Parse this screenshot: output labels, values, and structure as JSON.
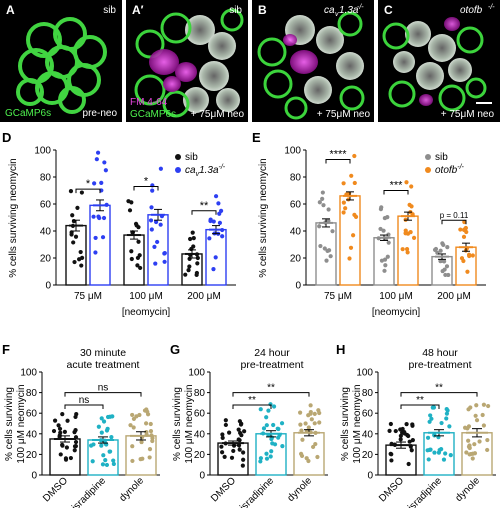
{
  "panels": {
    "A": {
      "letter": "A",
      "tag": "sib",
      "label_green": "GCaMP6s",
      "label_white": "pre-neo"
    },
    "A2": {
      "letter": "A′",
      "tag": "sib",
      "label_magenta": "FM 4-64",
      "label_green": "GCaMP6s",
      "label_white": "+ 75μM neo"
    },
    "B": {
      "letter": "B",
      "tag_main": "ca",
      "tag_sub": "v",
      "tag_rest": "1.3a",
      "tag_sup": "-/-",
      "label_white": "+ 75μM neo"
    },
    "C": {
      "letter": "C",
      "tag_main": "otofb",
      "tag_sup": "-/-",
      "label_white": "+ 75μM neo"
    }
  },
  "colors": {
    "green": "#3ed13e",
    "magenta": "#d61fd0",
    "blue": "#2d3ff2",
    "orange": "#f08a1e",
    "gray": "#8e8e8e",
    "teal": "#1fb1c4",
    "tan": "#b9a773",
    "black": "#111111"
  },
  "chart_data": [
    {
      "id": "D",
      "type": "bar",
      "letter": "D",
      "ylabel": "% cells surviving neomycin",
      "xlabel": "[neomycin]",
      "ylim": [
        0,
        100
      ],
      "yticks": [
        0,
        20,
        40,
        60,
        80,
        100
      ],
      "categories": [
        "75 μM",
        "100 μM",
        "200 μM"
      ],
      "legend": [
        {
          "name": "sib",
          "color": "#111111"
        },
        {
          "name": "ca",
          "sub": "v",
          "rest": "1.3a",
          "sup": "-/-",
          "color": "#2d3ff2"
        }
      ],
      "series": [
        {
          "name": "sib",
          "color": "#111111",
          "values": [
            44,
            37,
            23
          ],
          "errors": [
            4,
            3,
            3
          ]
        },
        {
          "name": "cav1.3a-/-",
          "color": "#2d3ff2",
          "values": [
            59,
            52,
            41
          ],
          "errors": [
            4,
            4,
            3
          ]
        }
      ],
      "significance": [
        {
          "group": 0,
          "text": "*",
          "y": 71
        },
        {
          "group": 1,
          "text": "*",
          "y": 73
        },
        {
          "group": 2,
          "text": "**",
          "y": 55
        }
      ]
    },
    {
      "id": "E",
      "type": "bar",
      "letter": "E",
      "ylabel": "% cells surviving neomycin",
      "xlabel": "[neomycin]",
      "ylim": [
        0,
        100
      ],
      "yticks": [
        0,
        20,
        40,
        60,
        80,
        100
      ],
      "categories": [
        "75 μM",
        "100 μM",
        "200 μM"
      ],
      "legend": [
        {
          "name": "sib",
          "color": "#8e8e8e"
        },
        {
          "name": "otofb",
          "sup": "-/-",
          "color": "#f08a1e"
        }
      ],
      "series": [
        {
          "name": "sib",
          "color": "#8e8e8e",
          "values": [
            46,
            35,
            21
          ],
          "errors": [
            3,
            2,
            2
          ]
        },
        {
          "name": "otofb-/-",
          "color": "#f08a1e",
          "values": [
            66,
            51,
            28
          ],
          "errors": [
            3,
            3,
            3
          ]
        }
      ],
      "significance": [
        {
          "group": 0,
          "text": "****",
          "y": 93
        },
        {
          "group": 1,
          "text": "***",
          "y": 70
        },
        {
          "group": 2,
          "text": "p = 0.11",
          "y": 48
        }
      ]
    },
    {
      "id": "F",
      "type": "bar",
      "letter": "F",
      "title": [
        "30 minute",
        "acute treatment"
      ],
      "ylabel": [
        "% cells surviving",
        "100 μM neomycin"
      ],
      "ylim": [
        0,
        100
      ],
      "yticks": [
        0,
        20,
        40,
        60,
        80,
        100
      ],
      "categories": [
        "DMSO",
        "isradipine",
        "dynole"
      ],
      "colors": [
        "#111111",
        "#1fb1c4",
        "#b9a773"
      ],
      "values": [
        35,
        34,
        38
      ],
      "errors": [
        3,
        3,
        4
      ],
      "significance": [
        {
          "a": 0,
          "b": 1,
          "text": "ns",
          "y": 68
        },
        {
          "a": 0,
          "b": 2,
          "text": "ns",
          "y": 80
        }
      ]
    },
    {
      "id": "G",
      "type": "bar",
      "letter": "G",
      "title": [
        "24 hour",
        "pre-treatment"
      ],
      "ylabel": [
        "% cells surviving",
        "100 μM neomycin"
      ],
      "ylim": [
        0,
        100
      ],
      "yticks": [
        0,
        20,
        40,
        60,
        80,
        100
      ],
      "categories": [
        "DMSO",
        "isradipine",
        "dynole"
      ],
      "colors": [
        "#111111",
        "#1fb1c4",
        "#b9a773"
      ],
      "values": [
        31,
        40,
        41
      ],
      "errors": [
        2,
        3,
        3
      ],
      "significance": [
        {
          "a": 0,
          "b": 1,
          "text": "**",
          "y": 68
        },
        {
          "a": 0,
          "b": 2,
          "text": "**",
          "y": 80
        }
      ]
    },
    {
      "id": "H",
      "type": "bar",
      "letter": "H",
      "title": [
        "48 hour",
        "pre-treatment"
      ],
      "ylabel": [
        "% cells surviving",
        "100 μM neomycin"
      ],
      "ylim": [
        0,
        100
      ],
      "yticks": [
        0,
        20,
        40,
        60,
        80,
        100
      ],
      "categories": [
        "DMSO",
        "isradipine",
        "dynole"
      ],
      "colors": [
        "#111111",
        "#1fb1c4",
        "#b9a773"
      ],
      "values": [
        29,
        41,
        41
      ],
      "errors": [
        3,
        3,
        4
      ],
      "significance": [
        {
          "a": 0,
          "b": 1,
          "text": "**",
          "y": 68
        },
        {
          "a": 0,
          "b": 2,
          "text": "**",
          "y": 80
        }
      ]
    }
  ]
}
